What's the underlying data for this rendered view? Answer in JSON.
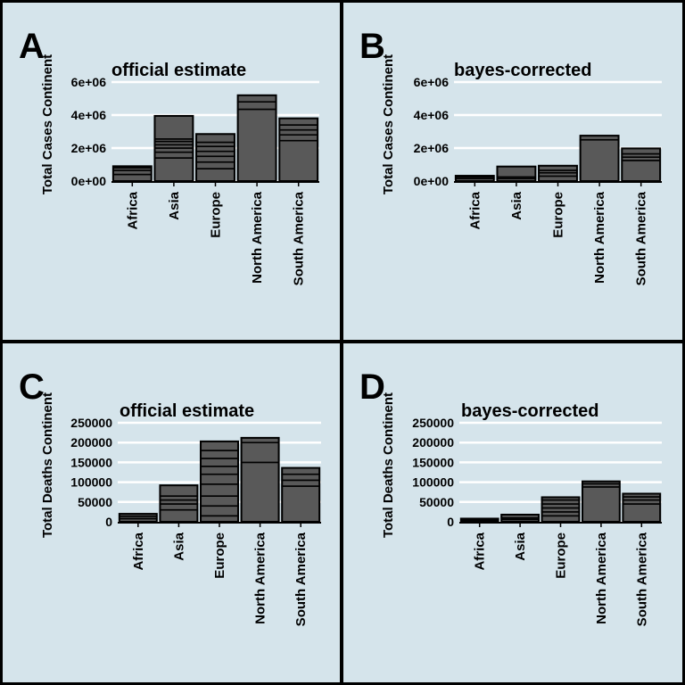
{
  "chart_data": [
    {
      "type": "bar",
      "panel_label": "A",
      "title": "official estimate",
      "ylabel": "Total Cases Continent",
      "ylim": [
        0,
        6000000
      ],
      "yticks": [
        0,
        2000000,
        4000000,
        6000000
      ],
      "ytick_labels": [
        "0e+00",
        "2e+06",
        "4e+06",
        "6e+06"
      ],
      "categories": [
        "Africa",
        "Asia",
        "Europe",
        "North America",
        "South America"
      ],
      "values": [
        900000,
        3950000,
        2850000,
        5200000,
        3800000
      ],
      "segments": [
        [
          400000,
          250000,
          150000,
          100000
        ],
        [
          1400000,
          350000,
          250000,
          200000,
          200000,
          150000,
          1400000
        ],
        [
          750000,
          400000,
          350000,
          300000,
          300000,
          250000,
          500000
        ],
        [
          4350000,
          450000,
          400000
        ],
        [
          2450000,
          350000,
          300000,
          300000,
          400000
        ]
      ],
      "grid": true,
      "colors": {
        "panel_bg": "#d5e4eb",
        "bar_fill": "#595959",
        "bar_edge": "#000000",
        "grid": "#ffffff"
      }
    },
    {
      "type": "bar",
      "panel_label": "B",
      "title": "bayes-corrected",
      "ylabel": "Total Cases Continent",
      "ylim": [
        0,
        6000000
      ],
      "yticks": [
        0,
        2000000,
        4000000,
        6000000
      ],
      "ytick_labels": [
        "0e+00",
        "2e+06",
        "4e+06",
        "6e+06"
      ],
      "categories": [
        "Africa",
        "Asia",
        "Europe",
        "North America",
        "South America"
      ],
      "values": [
        320000,
        880000,
        930000,
        2750000,
        1980000
      ],
      "segments": [
        [
          150000,
          100000,
          70000
        ],
        [
          150000,
          100000,
          630000
        ],
        [
          300000,
          200000,
          150000,
          280000
        ],
        [
          2500000,
          250000
        ],
        [
          1250000,
          200000,
          200000,
          330000
        ]
      ],
      "grid": true,
      "colors": {
        "panel_bg": "#d5e4eb",
        "bar_fill": "#595959",
        "bar_edge": "#000000",
        "grid": "#ffffff"
      }
    },
    {
      "type": "bar",
      "panel_label": "C",
      "title": "official estimate",
      "ylabel": "Total Deaths Continent",
      "ylim": [
        0,
        250000
      ],
      "yticks": [
        0,
        50000,
        100000,
        150000,
        200000,
        250000
      ],
      "ytick_labels": [
        "0",
        "50000",
        "100000",
        "150000",
        "200000",
        "250000"
      ],
      "categories": [
        "Africa",
        "Asia",
        "Europe",
        "North America",
        "South America"
      ],
      "values": [
        20000,
        92000,
        203000,
        212000,
        136000
      ],
      "segments": [
        [
          8000,
          6000,
          6000
        ],
        [
          30000,
          15000,
          10000,
          10000,
          27000
        ],
        [
          15000,
          25000,
          25000,
          30000,
          25000,
          20000,
          20000,
          20000,
          23000
        ],
        [
          150000,
          50000,
          12000
        ],
        [
          90000,
          15000,
          15000,
          16000
        ]
      ],
      "grid": true,
      "colors": {
        "panel_bg": "#d5e4eb",
        "bar_fill": "#595959",
        "bar_edge": "#000000",
        "grid": "#ffffff"
      }
    },
    {
      "type": "bar",
      "panel_label": "D",
      "title": "bayes-corrected",
      "ylabel": "Total Deaths Continent",
      "ylim": [
        0,
        250000
      ],
      "yticks": [
        0,
        50000,
        100000,
        150000,
        200000,
        250000
      ],
      "ytick_labels": [
        "0",
        "50000",
        "100000",
        "150000",
        "200000",
        "250000"
      ],
      "categories": [
        "Africa",
        "Asia",
        "Europe",
        "North America",
        "South America"
      ],
      "values": [
        8000,
        18000,
        62000,
        102000,
        71000
      ],
      "segments": [
        [
          4000,
          4000
        ],
        [
          6000,
          4000,
          8000
        ],
        [
          15000,
          10000,
          10000,
          10000,
          10000,
          7000
        ],
        [
          88000,
          8000,
          6000
        ],
        [
          45000,
          10000,
          8000,
          8000
        ]
      ],
      "grid": true,
      "colors": {
        "panel_bg": "#d5e4eb",
        "bar_fill": "#595959",
        "bar_edge": "#000000",
        "grid": "#ffffff"
      }
    }
  ]
}
